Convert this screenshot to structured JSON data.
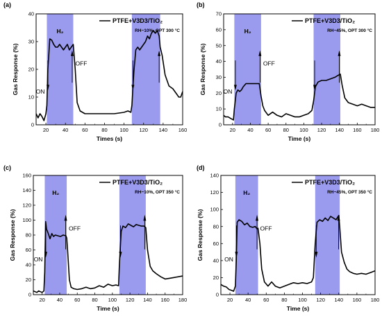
{
  "colors": {
    "band": "#9a9aee",
    "line": "#000000"
  },
  "chart_data": [
    {
      "panel": "(a)",
      "type": "line",
      "xlabel": "Times (s)",
      "ylabel": "Gas Response (%)",
      "xlim": [
        10,
        160
      ],
      "ylim": [
        0,
        40
      ],
      "xticks": [
        20,
        40,
        60,
        80,
        100,
        120,
        140,
        160
      ],
      "yticks": [
        0,
        10,
        20,
        30,
        40
      ],
      "legend": "PTFE+V3D3/TiO₂",
      "condition": "RH~10%, OPT 300 °C",
      "bands": [
        [
          21,
          48
        ],
        [
          108,
          137
        ]
      ],
      "gas": "H₂",
      "on": "ON",
      "off": "OFF",
      "series": [
        {
          "x": [
            10,
            12,
            14,
            16,
            18,
            20,
            21,
            22,
            24,
            26,
            28,
            30,
            32,
            34,
            36,
            38,
            40,
            42,
            44,
            46,
            48,
            50,
            52,
            55,
            60,
            70,
            80,
            90,
            100,
            104,
            107,
            108,
            110,
            112,
            114,
            116,
            118,
            120,
            122,
            124,
            126,
            128,
            130,
            132,
            134,
            136,
            137,
            139,
            142,
            146,
            150,
            154,
            156,
            158,
            160
          ],
          "y": [
            4,
            2.5,
            4,
            3,
            1.5,
            4,
            7,
            20,
            31,
            30.5,
            29,
            28,
            28,
            29,
            28,
            27,
            28,
            29,
            27,
            28,
            29,
            20,
            8,
            5,
            4,
            4,
            4,
            4,
            4.5,
            5,
            4.5,
            7,
            19,
            27,
            28,
            27,
            28,
            29,
            30,
            32,
            31,
            33,
            34,
            33,
            34,
            32,
            28,
            25,
            18,
            14,
            13,
            11,
            10,
            10,
            12
          ]
        }
      ]
    },
    {
      "panel": "(b)",
      "type": "line",
      "xlabel": "Time (s)",
      "ylabel": "Gas Response (%)",
      "xlim": [
        10,
        180
      ],
      "ylim": [
        0,
        70
      ],
      "xticks": [
        20,
        40,
        60,
        80,
        100,
        120,
        140,
        160,
        180
      ],
      "yticks": [
        0,
        10,
        20,
        30,
        40,
        50,
        60,
        70
      ],
      "legend": "PTFE+V3D3/TiO₂",
      "condition": "RH~45%, OPT 300 °C",
      "bands": [
        [
          22,
          52
        ],
        [
          111,
          141
        ]
      ],
      "gas": "H₂",
      "on": "ON",
      "off": "OFF",
      "series": [
        {
          "x": [
            10,
            12,
            15,
            18,
            21,
            22,
            24,
            26,
            28,
            30,
            32,
            35,
            38,
            40,
            45,
            50,
            52,
            54,
            56,
            60,
            65,
            70,
            75,
            80,
            85,
            90,
            95,
            100,
            105,
            109,
            111,
            113,
            116,
            120,
            125,
            130,
            135,
            138,
            141,
            143,
            146,
            150,
            155,
            160,
            165,
            170,
            175,
            180
          ],
          "y": [
            6,
            5,
            5,
            4,
            3,
            10,
            20,
            22,
            21,
            22,
            24,
            26,
            26,
            26,
            26,
            26,
            18,
            12,
            9,
            6,
            8,
            6,
            5,
            7,
            6,
            5,
            5,
            6,
            7,
            9,
            15,
            24,
            27,
            28,
            28,
            29,
            30,
            31,
            32,
            25,
            17,
            14,
            13,
            12,
            13,
            12,
            11,
            11
          ]
        }
      ]
    },
    {
      "panel": "(c)",
      "type": "line",
      "xlabel": "Time (s)",
      "ylabel": "Gas Response (%)",
      "xlim": [
        10,
        180
      ],
      "ylim": [
        0,
        160
      ],
      "xticks": [
        20,
        40,
        60,
        80,
        100,
        120,
        140,
        160,
        180
      ],
      "yticks": [
        0,
        20,
        40,
        60,
        80,
        100,
        120,
        140,
        160
      ],
      "legend": "PTFE+V3D3/TiO₂",
      "condition": "RH~10%, OPT 350 °C",
      "bands": [
        [
          23,
          48
        ],
        [
          108,
          138
        ]
      ],
      "gas": "H₂",
      "on": "ON",
      "off": "OFF",
      "series": [
        {
          "x": [
            10,
            12,
            14,
            16,
            18,
            20,
            22,
            23,
            24,
            25,
            27,
            29,
            31,
            33,
            35,
            38,
            41,
            44,
            47,
            48,
            49,
            51,
            53,
            56,
            60,
            65,
            70,
            75,
            80,
            85,
            90,
            95,
            100,
            104,
            107,
            108,
            110,
            112,
            115,
            118,
            121,
            124,
            127,
            130,
            133,
            136,
            138,
            140,
            143,
            146,
            150,
            155,
            160,
            165,
            170,
            175,
            180
          ],
          "y": [
            5,
            4,
            3,
            5,
            4,
            3,
            5,
            30,
            98,
            88,
            82,
            75,
            82,
            78,
            80,
            79,
            78,
            80,
            79,
            76,
            60,
            20,
            10,
            8,
            7,
            8,
            10,
            8,
            9,
            12,
            10,
            14,
            12,
            13,
            12,
            40,
            85,
            92,
            90,
            95,
            93,
            91,
            94,
            93,
            92,
            92,
            90,
            60,
            38,
            32,
            28,
            24,
            21,
            22,
            23,
            24,
            25
          ]
        }
      ]
    },
    {
      "panel": "(d)",
      "type": "line",
      "xlabel": "Time (s)",
      "ylabel": "Gas Response (%)",
      "xlim": [
        10,
        180
      ],
      "ylim": [
        0,
        140
      ],
      "xticks": [
        20,
        40,
        60,
        80,
        100,
        120,
        140,
        160,
        180
      ],
      "yticks": [
        0,
        20,
        40,
        60,
        80,
        100,
        120,
        140
      ],
      "legend": "PTFE+V3D3/TiO₂",
      "condition": "RH~45%, OPT 350 °C",
      "bands": [
        [
          26,
          51
        ],
        [
          114,
          141
        ]
      ],
      "gas": "H₂",
      "on": "ON",
      "off": "OFF",
      "series": [
        {
          "x": [
            10,
            13,
            16,
            19,
            22,
            24,
            26,
            27,
            28,
            30,
            33,
            36,
            39,
            42,
            45,
            48,
            50,
            51,
            53,
            55,
            58,
            62,
            66,
            70,
            75,
            80,
            85,
            90,
            95,
            100,
            105,
            110,
            112,
            114,
            116,
            119,
            122,
            125,
            128,
            131,
            134,
            137,
            140,
            141,
            143,
            146,
            149,
            152,
            156,
            160,
            165,
            170,
            175,
            180
          ],
          "y": [
            12,
            10,
            9,
            6,
            5,
            4,
            10,
            40,
            85,
            88,
            86,
            82,
            84,
            80,
            79,
            80,
            77,
            78,
            60,
            30,
            15,
            10,
            15,
            10,
            8,
            10,
            12,
            14,
            13,
            14,
            13,
            15,
            20,
            60,
            85,
            88,
            86,
            90,
            87,
            92,
            90,
            88,
            93,
            80,
            50,
            38,
            30,
            27,
            25,
            24,
            25,
            24,
            26,
            28
          ]
        }
      ]
    }
  ]
}
